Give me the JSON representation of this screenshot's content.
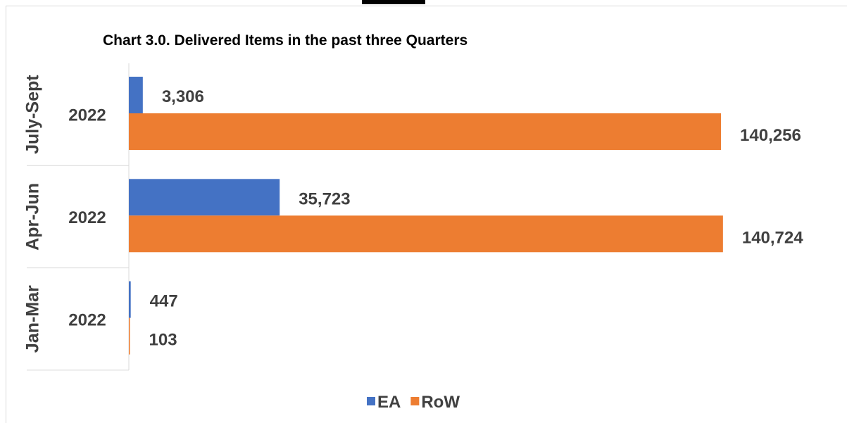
{
  "chart_data": {
    "type": "bar",
    "orientation": "horizontal",
    "title": "Chart 3.0. Delivered Items in the past three Quarters",
    "categories": [
      {
        "outer": "July-Sept",
        "inner": "2022"
      },
      {
        "outer": "Apr-Jun",
        "inner": "2022"
      },
      {
        "outer": "Jan-Mar",
        "inner": "2022"
      }
    ],
    "series": [
      {
        "name": "EA",
        "color": "#4472C4",
        "values": [
          3306,
          35723,
          447
        ],
        "labels": [
          "3,306",
          "35,723",
          "447"
        ]
      },
      {
        "name": "RoW",
        "color": "#ED7D31",
        "values": [
          140256,
          140724,
          103
        ],
        "labels": [
          "140,256",
          "140,724",
          "103"
        ]
      }
    ],
    "xlim": [
      0,
      141000
    ],
    "grid": false,
    "legend_position": "bottom"
  }
}
